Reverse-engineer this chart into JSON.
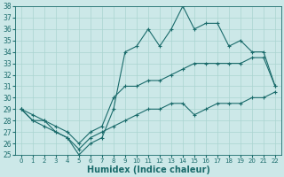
{
  "title": "",
  "xlabel": "Humidex (Indice chaleur)",
  "ylabel": "",
  "background_color": "#cce8e8",
  "line_color": "#1a6b6b",
  "x_values": [
    0,
    1,
    2,
    3,
    4,
    5,
    6,
    7,
    8,
    9,
    10,
    11,
    12,
    13,
    14,
    15,
    16,
    17,
    18,
    19,
    20,
    21,
    22
  ],
  "line1": [
    29,
    28,
    28,
    27,
    26.5,
    25,
    26,
    26.5,
    29,
    34,
    34.5,
    36,
    34.5,
    36,
    38,
    36,
    36.5,
    36.5,
    34.5,
    35,
    34,
    34,
    31
  ],
  "line2": [
    29,
    28.5,
    28,
    27.5,
    27,
    26,
    27,
    27.5,
    30,
    31,
    31,
    31.5,
    31.5,
    32,
    32.5,
    33,
    33,
    33,
    33,
    33,
    33.5,
    33.5,
    31
  ],
  "line3": [
    29,
    28,
    27.5,
    27,
    26.5,
    25.5,
    26.5,
    27,
    27.5,
    28,
    28.5,
    29,
    29,
    29.5,
    29.5,
    28.5,
    29,
    29.5,
    29.5,
    29.5,
    30,
    30,
    30.5
  ],
  "ylim": [
    25,
    38
  ],
  "xlim": [
    -0.5,
    22.5
  ],
  "yticks": [
    25,
    26,
    27,
    28,
    29,
    30,
    31,
    32,
    33,
    34,
    35,
    36,
    37,
    38
  ],
  "xticks": [
    0,
    1,
    2,
    3,
    4,
    5,
    6,
    7,
    8,
    9,
    10,
    11,
    12,
    13,
    14,
    15,
    16,
    17,
    18,
    19,
    20,
    21,
    22
  ],
  "grid_color": "#aad4d0",
  "xlabel_fontsize": 7,
  "tick_fontsize": 5.5
}
